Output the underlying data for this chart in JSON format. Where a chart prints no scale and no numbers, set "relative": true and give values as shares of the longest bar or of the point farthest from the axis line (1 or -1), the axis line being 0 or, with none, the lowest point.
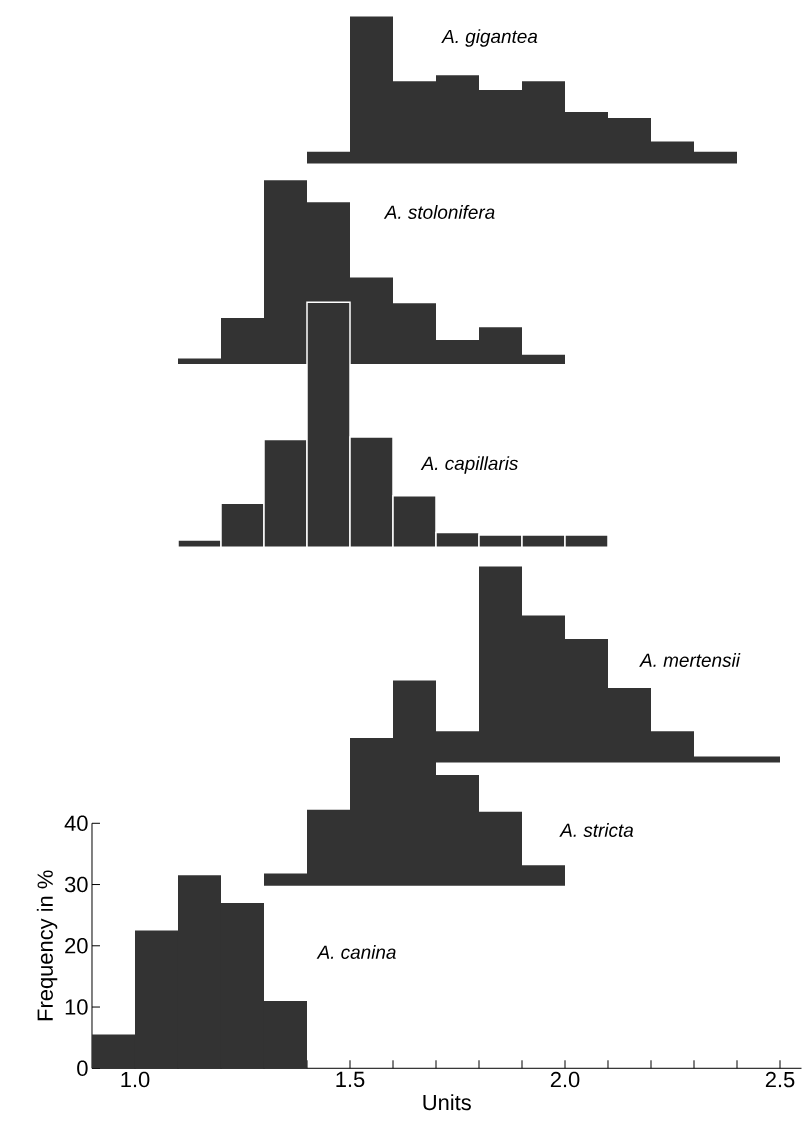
{
  "chart_data": [
    {
      "type": "bar",
      "relative": true,
      "categories": [
        null,
        null,
        null,
        null,
        null,
        null,
        null,
        null,
        null,
        null
      ],
      "values": [
        0.08,
        1,
        0.56,
        0.6,
        0.5,
        0.56,
        0.35,
        0.31,
        0.15,
        0.08
      ],
      "color": "#333333",
      "tick_labels": false,
      "annotations": [
        "A. gigantea"
      ]
    },
    {
      "type": "bar",
      "relative": true,
      "categories": [
        null,
        null,
        null,
        null,
        null,
        null,
        null,
        null,
        null
      ],
      "values": [
        0.03,
        0.25,
        1,
        0.88,
        0.47,
        0.33,
        0.13,
        0.2,
        0.05
      ],
      "color": "#333333",
      "tick_labels": false,
      "annotations": [
        "A. stolonifera"
      ]
    },
    {
      "type": "bar",
      "relative": true,
      "categories": [
        null,
        null,
        null,
        null,
        null,
        null,
        null,
        null,
        null,
        null
      ],
      "values": [
        0.03,
        0.18,
        0.44,
        1,
        0.45,
        0.21,
        0.06,
        0.05,
        0.05,
        0.05
      ],
      "color": "#333333",
      "tick_labels": false,
      "annotations": [
        "A. capillaris"
      ]
    },
    {
      "type": "bar",
      "relative": true,
      "categories": [
        null,
        null,
        null,
        null,
        null,
        null,
        null,
        null
      ],
      "values": [
        0.16,
        1,
        0.75,
        0.63,
        0.38,
        0.16,
        0.03,
        0.03
      ],
      "color": "#333333",
      "tick_labels": false,
      "annotations": [
        "A. mertensii"
      ]
    },
    {
      "type": "bar",
      "relative": true,
      "categories": [
        null,
        null,
        null,
        null,
        null,
        null,
        null
      ],
      "values": [
        0.06,
        0.37,
        0.72,
        1,
        0.54,
        0.36,
        0.1
      ],
      "color": "#333333",
      "tick_labels": false,
      "annotations": [
        "A. stricta"
      ]
    },
    {
      "type": "histogram",
      "bins": [
        0.9,
        1.0,
        1.1,
        1.2,
        1.3,
        1.4
      ],
      "values": [
        5.5,
        22.5,
        31.5,
        27,
        11
      ],
      "color": "#333333",
      "xlim": [
        0.9,
        2.55
      ],
      "ylim": [
        0,
        40
      ],
      "xlabel": "Units",
      "ylabel": "Frequency in %",
      "annotations": [
        "A. canina"
      ],
      "xticks": [
        {
          "value": 1.0,
          "label": "1.0"
        },
        {
          "value": 1.1,
          "label": null
        },
        {
          "value": 1.2,
          "label": null
        },
        {
          "value": 1.3,
          "label": null
        },
        {
          "value": 1.4,
          "label": null
        },
        {
          "value": 1.5,
          "label": "1.5"
        },
        {
          "value": 1.6,
          "label": null
        },
        {
          "value": 1.7,
          "label": null
        },
        {
          "value": 1.8,
          "label": null
        },
        {
          "value": 1.9,
          "label": null
        },
        {
          "value": 2.0,
          "label": "2.0"
        },
        {
          "value": 2.1,
          "label": null
        },
        {
          "value": 2.2,
          "label": null
        },
        {
          "value": 2.3,
          "label": null
        },
        {
          "value": 2.4,
          "label": null
        },
        {
          "value": 2.5,
          "label": "2.5"
        }
      ],
      "yticks": [
        0,
        10,
        20,
        30,
        40
      ]
    }
  ]
}
